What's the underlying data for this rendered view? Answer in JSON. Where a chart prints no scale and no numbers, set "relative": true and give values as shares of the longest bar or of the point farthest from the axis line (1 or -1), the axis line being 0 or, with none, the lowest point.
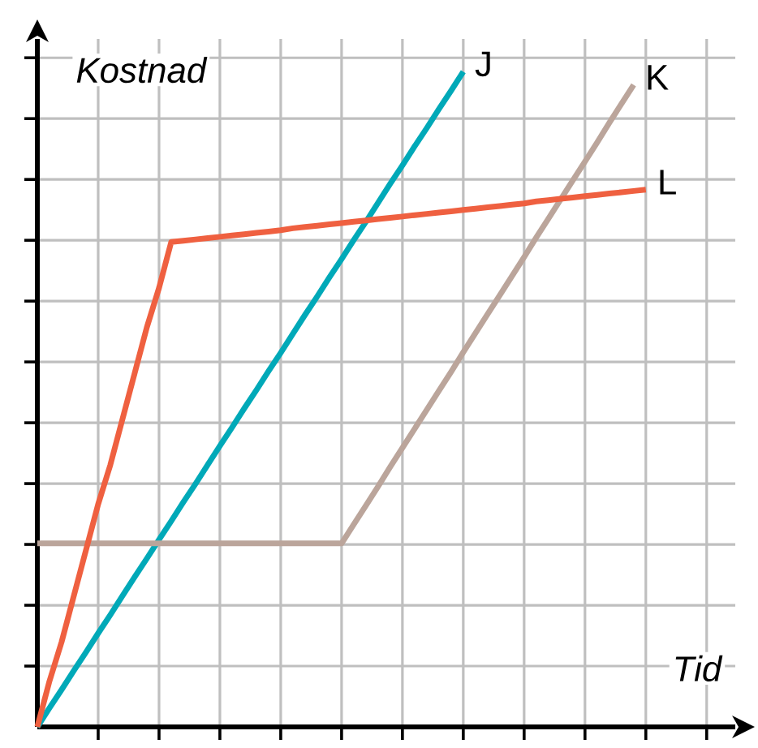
{
  "chart_data": {
    "type": "line",
    "xlabel": "Tid",
    "ylabel": "Kostnad",
    "relative": true,
    "grid": true,
    "tick_labels": false,
    "categories": [
      null,
      null,
      null,
      null,
      null,
      null,
      null,
      null,
      null,
      null,
      null,
      null,
      null,
      null,
      null,
      null,
      null,
      null,
      null,
      null,
      null,
      null,
      null,
      null,
      null,
      null,
      null,
      null,
      null,
      null,
      null,
      null,
      null,
      null,
      null,
      null,
      null,
      null,
      null,
      null,
      null,
      null,
      null,
      null,
      null,
      null,
      null,
      null,
      null,
      null,
      null
    ],
    "series": [
      {
        "name": "J",
        "color": "#00a9b8",
        "values": [
          0,
          0.029,
          0.057,
          0.086,
          0.114,
          0.143,
          0.171,
          0.2,
          0.229,
          0.257,
          0.286,
          0.314,
          0.343,
          0.371,
          0.4,
          0.429,
          0.457,
          0.486,
          0.514,
          0.543,
          0.571,
          0.6,
          0.629,
          0.657,
          0.686,
          0.714,
          0.743,
          0.771,
          0.8,
          0.829,
          0.857,
          0.886,
          0.914,
          0.943,
          0.971,
          1,
          null,
          null,
          null,
          null,
          null,
          null,
          null,
          null,
          null,
          null,
          null,
          null,
          null,
          null,
          null
        ]
      },
      {
        "name": "K",
        "color": "#bba59b",
        "values": [
          0.28,
          0.28,
          0.28,
          0.28,
          0.28,
          0.28,
          0.28,
          0.28,
          0.28,
          0.28,
          0.28,
          0.28,
          0.28,
          0.28,
          0.28,
          0.28,
          0.28,
          0.28,
          0.28,
          0.28,
          0.28,
          0.28,
          0.28,
          0.28,
          0.28,
          0.28,
          0.309,
          0.338,
          0.367,
          0.397,
          0.426,
          0.455,
          0.484,
          0.513,
          0.542,
          0.572,
          0.601,
          0.63,
          0.659,
          0.688,
          0.717,
          0.747,
          0.776,
          0.805,
          0.834,
          0.863,
          0.892,
          0.922,
          0.951,
          0.98,
          null
        ]
      },
      {
        "name": "L",
        "color": "#ef6040",
        "values": [
          0,
          0.07,
          0.13,
          0.2,
          0.27,
          0.34,
          0.4,
          0.47,
          0.54,
          0.61,
          0.67,
          0.74,
          0.742,
          0.744,
          0.746,
          0.748,
          0.75,
          0.752,
          0.754,
          0.756,
          0.758,
          0.761,
          0.763,
          0.765,
          0.767,
          0.769,
          0.771,
          0.773,
          0.775,
          0.777,
          0.779,
          0.781,
          0.783,
          0.785,
          0.787,
          0.789,
          0.791,
          0.793,
          0.795,
          0.797,
          0.799,
          0.802,
          0.804,
          0.806,
          0.808,
          0.81,
          0.812,
          0.814,
          0.816,
          0.818,
          0.82
        ]
      }
    ]
  }
}
